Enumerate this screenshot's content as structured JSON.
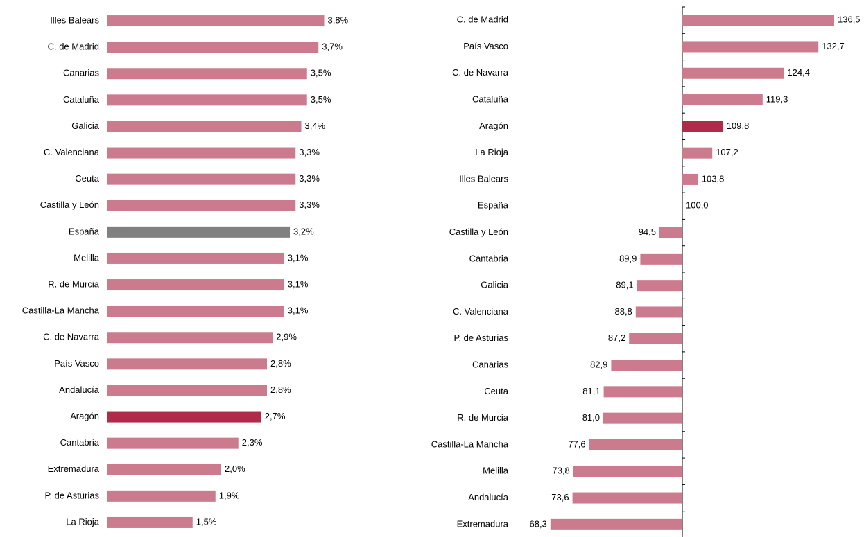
{
  "chart_data": [
    {
      "type": "hbar",
      "categories": [
        "Illes Balears",
        "C. de Madrid",
        "Canarias",
        "Cataluña",
        "Galicia",
        "C. Valenciana",
        "Ceuta",
        "Castilla y León",
        "España",
        "Melilla",
        "R. de Murcia",
        "Castilla-La Mancha",
        "C. de Navarra",
        "País Vasco",
        "Andalucía",
        "Aragón",
        "Cantabria",
        "Extremadura",
        "P. de Asturias",
        "La Rioja"
      ],
      "values": [
        3.8,
        3.7,
        3.5,
        3.5,
        3.4,
        3.3,
        3.3,
        3.3,
        3.2,
        3.1,
        3.1,
        3.1,
        2.9,
        2.8,
        2.8,
        2.7,
        2.3,
        2.0,
        1.9,
        1.5
      ],
      "value_labels": [
        "3,8%",
        "3,7%",
        "3,5%",
        "3,5%",
        "3,4%",
        "3,3%",
        "3,3%",
        "3,3%",
        "3,2%",
        "3,1%",
        "3,1%",
        "3,1%",
        "2,9%",
        "2,8%",
        "2,8%",
        "2,7%",
        "2,3%",
        "2,0%",
        "1,9%",
        "1,5%"
      ],
      "colors": [
        "#cc7b8f",
        "#cc7b8f",
        "#cc7b8f",
        "#cc7b8f",
        "#cc7b8f",
        "#cc7b8f",
        "#cc7b8f",
        "#cc7b8f",
        "#808080",
        "#cc7b8f",
        "#cc7b8f",
        "#cc7b8f",
        "#cc7b8f",
        "#cc7b8f",
        "#cc7b8f",
        "#b02a4a",
        "#cc7b8f",
        "#cc7b8f",
        "#cc7b8f",
        "#cc7b8f"
      ],
      "xlim": [
        0,
        4
      ],
      "baseline": 0,
      "axis_line": false
    },
    {
      "type": "hbar",
      "categories": [
        "C. de Madrid",
        "País Vasco",
        "C. de Navarra",
        "Cataluña",
        "Aragón",
        "La Rioja",
        "Illes Balears",
        "España",
        "Castilla y León",
        "Cantabria",
        "Galicia",
        "C. Valenciana",
        "P. de Asturias",
        "Canarias",
        "Ceuta",
        "R. de Murcia",
        "Castilla-La Mancha",
        "Melilla",
        "Andalucía",
        "Extremadura"
      ],
      "values": [
        136.5,
        132.7,
        124.4,
        119.3,
        109.8,
        107.2,
        103.8,
        100.0,
        94.5,
        89.9,
        89.1,
        88.8,
        87.2,
        82.9,
        81.1,
        81.0,
        77.6,
        73.8,
        73.6,
        68.3
      ],
      "value_labels": [
        "136,5",
        "132,7",
        "124,4",
        "119,3",
        "109,8",
        "107,2",
        "103,8",
        "100,0",
        "94,5",
        "89,9",
        "89,1",
        "88,8",
        "87,2",
        "82,9",
        "81,1",
        "81,0",
        "77,6",
        "73,8",
        "73,6",
        "68,3"
      ],
      "colors": [
        "#cc7b8f",
        "#cc7b8f",
        "#cc7b8f",
        "#cc7b8f",
        "#b02a4a",
        "#cc7b8f",
        "#cc7b8f",
        "#cc7b8f",
        "#cc7b8f",
        "#cc7b8f",
        "#cc7b8f",
        "#cc7b8f",
        "#cc7b8f",
        "#cc7b8f",
        "#cc7b8f",
        "#cc7b8f",
        "#cc7b8f",
        "#cc7b8f",
        "#cc7b8f",
        "#cc7b8f"
      ],
      "xlim": [
        60,
        140
      ],
      "baseline": 100,
      "axis_line": true
    }
  ]
}
